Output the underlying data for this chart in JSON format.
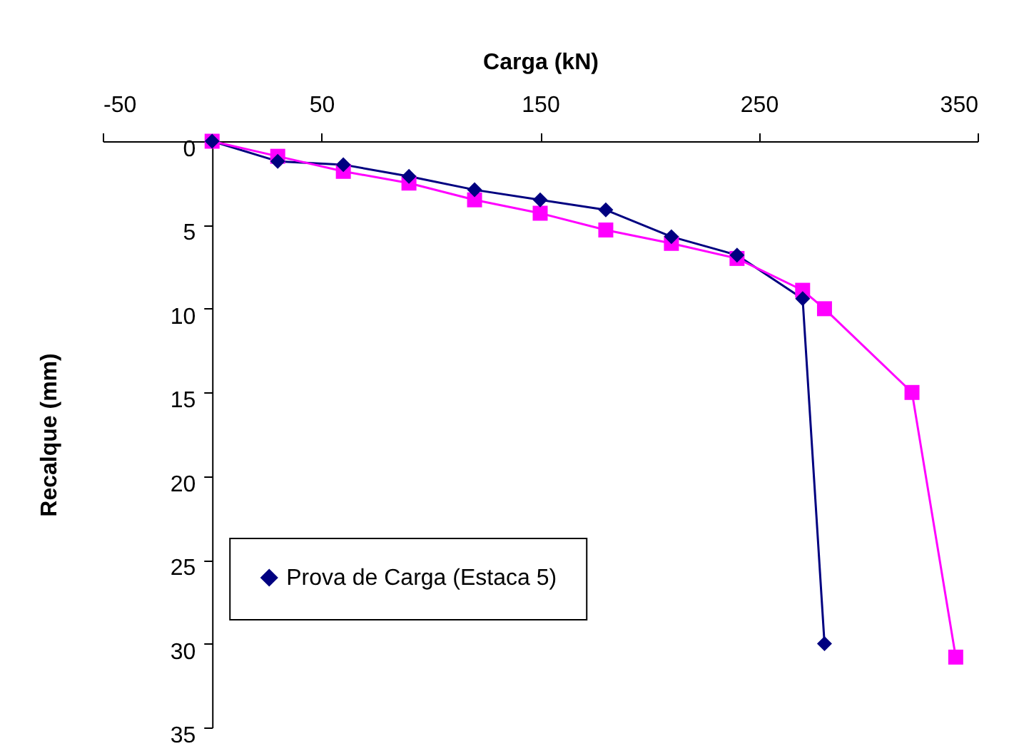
{
  "chart_data": {
    "type": "line",
    "xlabel": "Carga (kN)",
    "ylabel": "Recalque (mm)",
    "xlim": [
      -50,
      350
    ],
    "xticks": [
      -50,
      50,
      150,
      250,
      350
    ],
    "ylim": [
      35,
      0
    ],
    "yticks": [
      0,
      5,
      10,
      15,
      20,
      25,
      30,
      35
    ],
    "grid": false,
    "legend": "bottom left",
    "series": [
      {
        "name": "Prova de Carga (Estaca 5)",
        "color": "#000080",
        "marker": "diamond",
        "x": [
          0,
          30,
          60,
          90,
          120,
          150,
          180,
          210,
          240,
          270,
          280
        ],
        "values": [
          0,
          1.2,
          1.4,
          2.1,
          2.9,
          3.5,
          4.1,
          5.7,
          6.8,
          9.4,
          30
        ]
      },
      {
        "color": "#ff00ff",
        "marker": "square",
        "x": [
          0,
          30,
          60,
          90,
          120,
          150,
          180,
          210,
          240,
          270,
          280,
          320,
          340
        ],
        "values": [
          0,
          0.9,
          1.8,
          2.5,
          3.5,
          4.3,
          5.3,
          6.1,
          7.0,
          8.9,
          10.0,
          15,
          30.8
        ]
      }
    ]
  }
}
